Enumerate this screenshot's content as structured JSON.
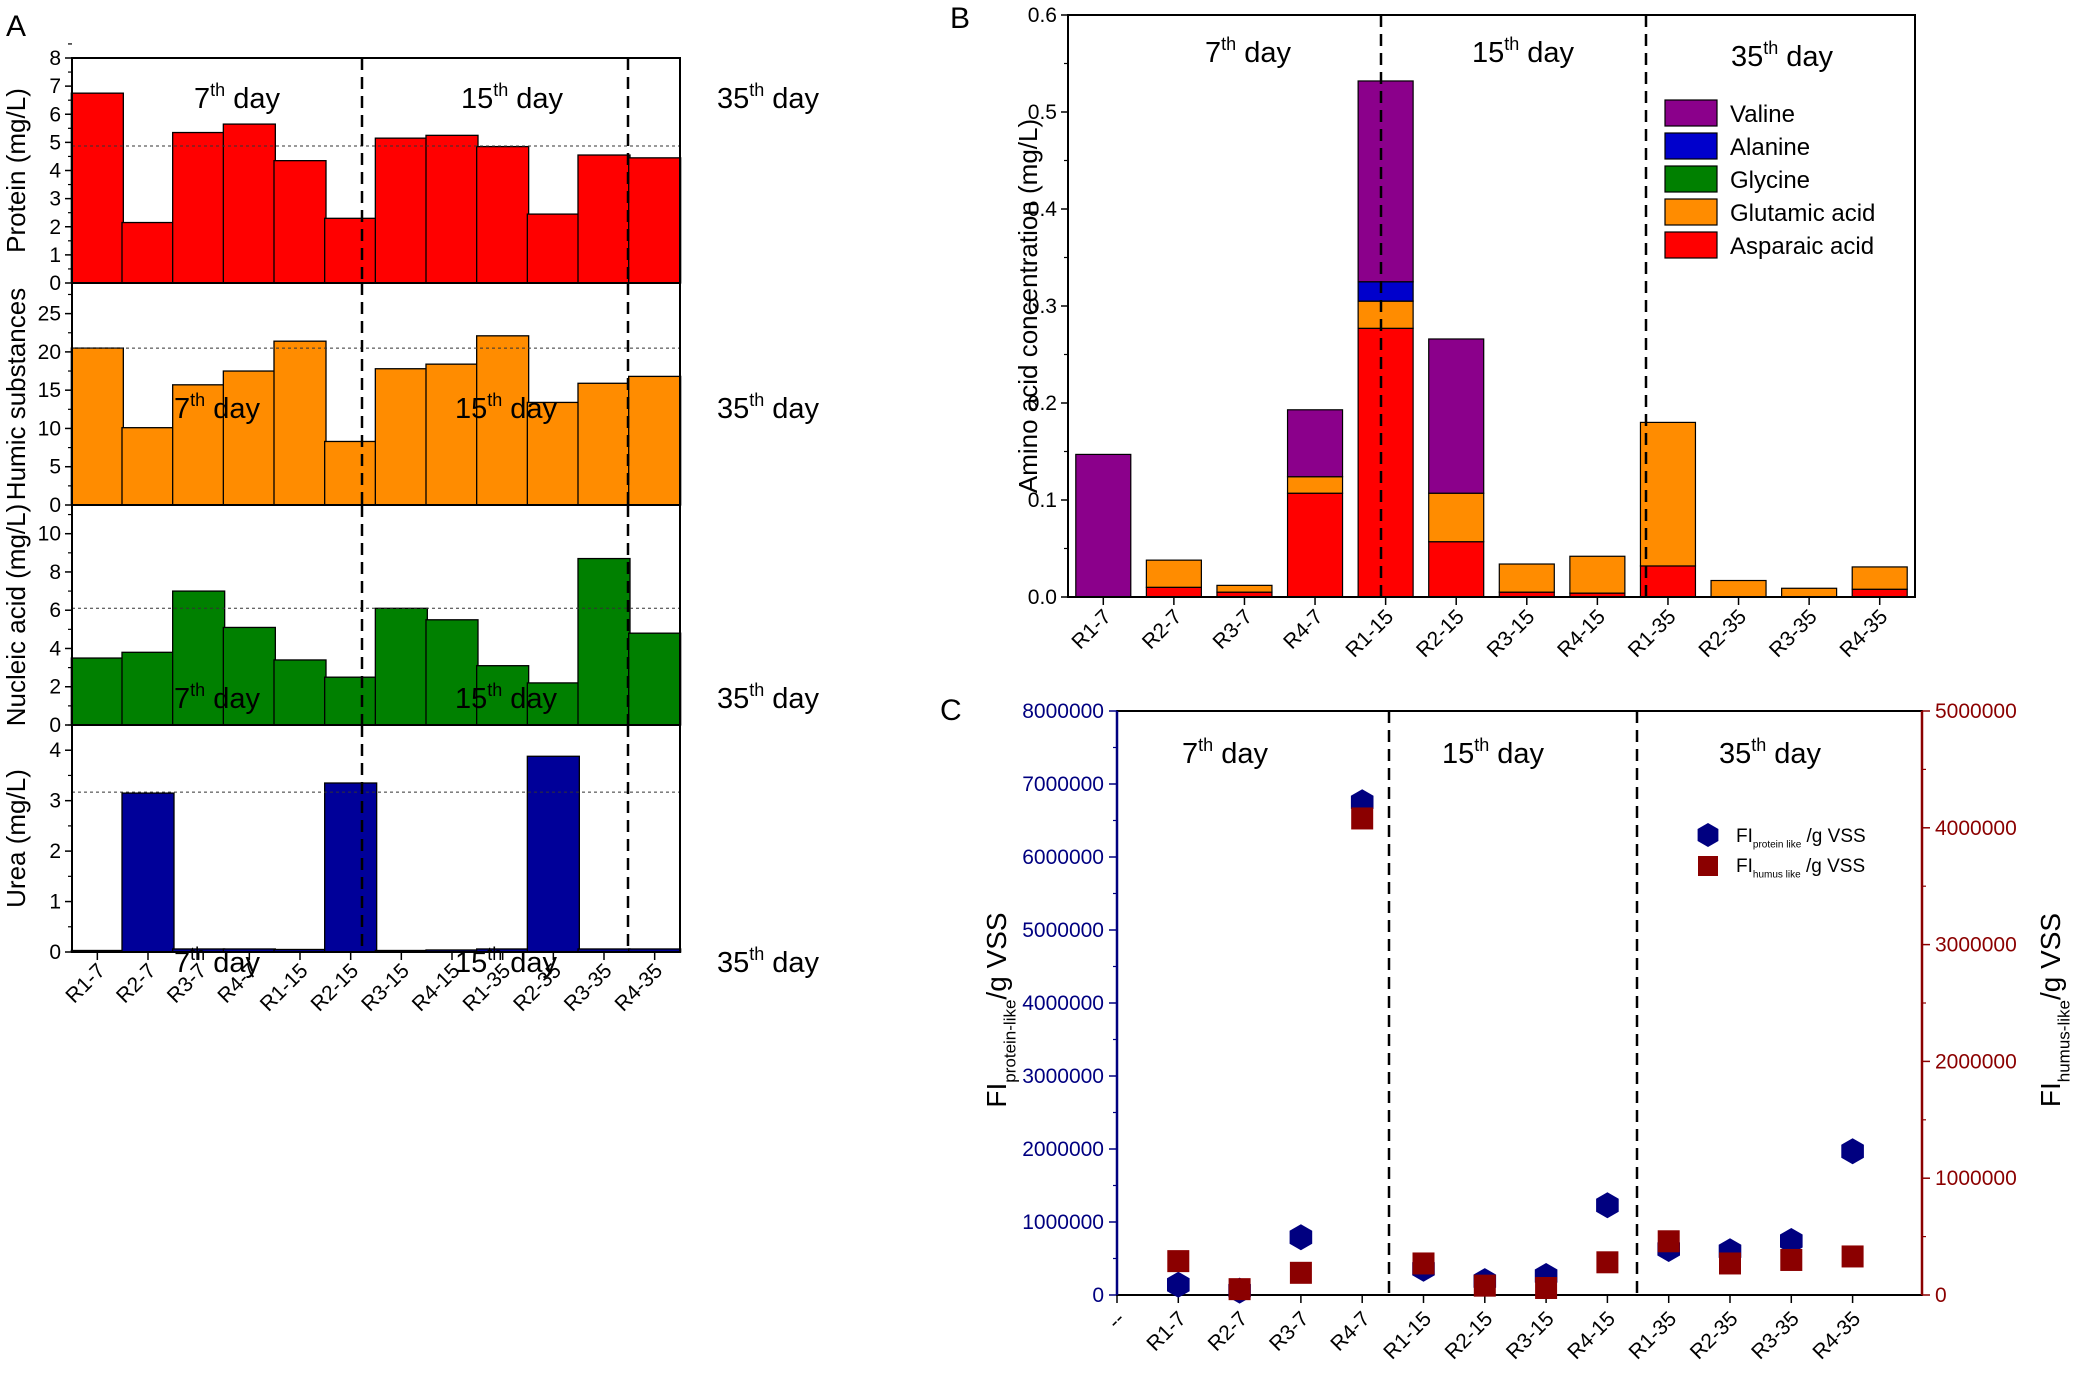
{
  "chart_data": [
    {
      "panel": "A",
      "type": "bar",
      "period_labels": [
        [
          "7",
          "th",
          " day"
        ],
        [
          "15",
          "th",
          " day"
        ],
        [
          "35",
          "th",
          " day"
        ]
      ],
      "categories": [
        "R1-7",
        "R2-7",
        "R3-7",
        "R4-7",
        "R1-15",
        "R2-15",
        "R3-15",
        "R4-15",
        "R1-35",
        "R2-35",
        "R3-35",
        "R4-35"
      ],
      "subplots": [
        {
          "ylabel": "Protein (mg/L)",
          "ylim": [
            0,
            8
          ],
          "ticks": [
            "0",
            "1",
            "2",
            "3",
            "4",
            "5",
            "6",
            "7",
            "8"
          ],
          "color": "#ff0000",
          "values": [
            6.75,
            2.15,
            5.35,
            5.65,
            4.35,
            2.3,
            5.15,
            5.25,
            4.85,
            2.45,
            4.55,
            4.45
          ],
          "reference": 4.87
        },
        {
          "ylabel": "Humic substances",
          "ylim": [
            0,
            29
          ],
          "ticks": [
            "0",
            "5",
            "10",
            "15",
            "20",
            "25"
          ],
          "color": "#ff8c00",
          "values": [
            20.5,
            10.1,
            15.7,
            17.5,
            21.4,
            8.3,
            17.8,
            18.4,
            22.1,
            13.4,
            15.9,
            16.8
          ],
          "reference": 20.5
        },
        {
          "ylabel": "Nucleic acid (mg/L)",
          "ylim": [
            0,
            11.5
          ],
          "ticks": [
            "0",
            "2",
            "4",
            "6",
            "8",
            "10"
          ],
          "color": "#008000",
          "values": [
            3.5,
            3.8,
            7.0,
            5.1,
            3.4,
            2.5,
            6.1,
            5.5,
            3.1,
            2.2,
            8.7,
            4.8
          ],
          "reference": 6.1
        },
        {
          "ylabel": "Urea (mg/L)",
          "ylim": [
            0,
            4.5
          ],
          "ticks": [
            "0",
            "1",
            "2",
            "3",
            "4"
          ],
          "color": "#000099",
          "values": [
            0.03,
            3.15,
            0.06,
            0.06,
            0.05,
            3.35,
            0.03,
            0.04,
            0.06,
            3.88,
            0.06,
            0.06
          ],
          "reference": 3.17
        }
      ]
    },
    {
      "panel": "B",
      "type": "bar",
      "stacked": true,
      "ylabel": "Amino acid concentration (mg/L)",
      "ylim": [
        0,
        0.6
      ],
      "ticks": [
        "0.0",
        "0.1",
        "0.2",
        "0.3",
        "0.4",
        "0.5",
        "0.6"
      ],
      "period_labels": [
        [
          "7",
          "th",
          " day"
        ],
        [
          "15",
          "th",
          " day"
        ],
        [
          "35",
          "th",
          " day"
        ]
      ],
      "categories": [
        "R1-7",
        "R2-7",
        "R3-7",
        "R4-7",
        "R1-15",
        "R2-15",
        "R3-15",
        "R4-15",
        "R1-35",
        "R2-35",
        "R3-35",
        "R4-35"
      ],
      "series": [
        {
          "name": "Asparaic acid",
          "color": "#ff0000",
          "values": [
            0.0,
            0.01,
            0.005,
            0.107,
            0.277,
            0.057,
            0.005,
            0.004,
            0.032,
            0.0,
            0.0,
            0.008
          ]
        },
        {
          "name": "Glutamic acid",
          "color": "#ff8c00",
          "values": [
            0.0,
            0.028,
            0.007,
            0.017,
            0.028,
            0.05,
            0.029,
            0.038,
            0.148,
            0.017,
            0.009,
            0.023
          ]
        },
        {
          "name": "Glycine",
          "color": "#008000",
          "values": [
            0,
            0,
            0,
            0,
            0,
            0,
            0,
            0,
            0,
            0,
            0,
            0
          ]
        },
        {
          "name": "Alanine",
          "color": "#0000cc",
          "values": [
            0,
            0,
            0,
            0,
            0.02,
            0,
            0,
            0,
            0,
            0,
            0,
            0
          ]
        },
        {
          "name": "Valine",
          "color": "#8b008b",
          "values": [
            0.147,
            0.0,
            0.0,
            0.069,
            0.207,
            0.159,
            0.0,
            0.0,
            0.0,
            0.0,
            0.0,
            0.0
          ]
        }
      ],
      "legend_order": [
        "Valine",
        "Alanine",
        "Glycine",
        "Glutamic acid",
        "Asparaic acid"
      ]
    },
    {
      "panel": "C",
      "type": "scatter",
      "period_labels": [
        [
          "7",
          "th",
          " day"
        ],
        [
          "15",
          "th",
          " day"
        ],
        [
          "35",
          "th",
          " day"
        ]
      ],
      "categories": [
        "R1-7",
        "R2-7",
        "R3-7",
        "R4-7",
        "R1-15",
        "R2-15",
        "R3-15",
        "R4-15",
        "R1-35",
        "R2-35",
        "R3-35",
        "R4-35"
      ],
      "first_tick": "--",
      "ylabel_left": {
        "main": "FI",
        "sub": "protein-like",
        "rest": "/g VSS"
      },
      "ylabel_right": {
        "main": "FI",
        "sub": "humus-like",
        "rest": "/g VSS"
      },
      "ylim_left": [
        0,
        8000000
      ],
      "ylim_right": [
        0,
        5000000
      ],
      "ticks_left": [
        "0",
        "1000000",
        "2000000",
        "3000000",
        "4000000",
        "5000000",
        "6000000",
        "7000000",
        "8000000"
      ],
      "ticks_right": [
        "0",
        "1000000",
        "2000000",
        "3000000",
        "4000000",
        "5000000"
      ],
      "series": [
        {
          "name": "FI_protein-like/g VSS",
          "legend": {
            "main": "FI",
            "sub": "protein like",
            "rest": " /g VSS"
          },
          "axis": "left",
          "marker": "hexagon",
          "color": "#000080",
          "values": [
            140000,
            60000,
            790000,
            6750000,
            360000,
            190000,
            260000,
            1230000,
            630000,
            600000,
            740000,
            1970000
          ]
        },
        {
          "name": "FI_humus-like/g VSS",
          "legend": {
            "main": "FI",
            "sub": "humus like",
            "rest": " /g VSS"
          },
          "axis": "right",
          "marker": "square",
          "color": "#8b0000",
          "values": [
            290000,
            50000,
            190000,
            4080000,
            270000,
            80000,
            60000,
            280000,
            460000,
            270000,
            300000,
            330000
          ]
        }
      ]
    }
  ],
  "panel_labels": {
    "a": "A",
    "b": "B",
    "c": "C"
  }
}
